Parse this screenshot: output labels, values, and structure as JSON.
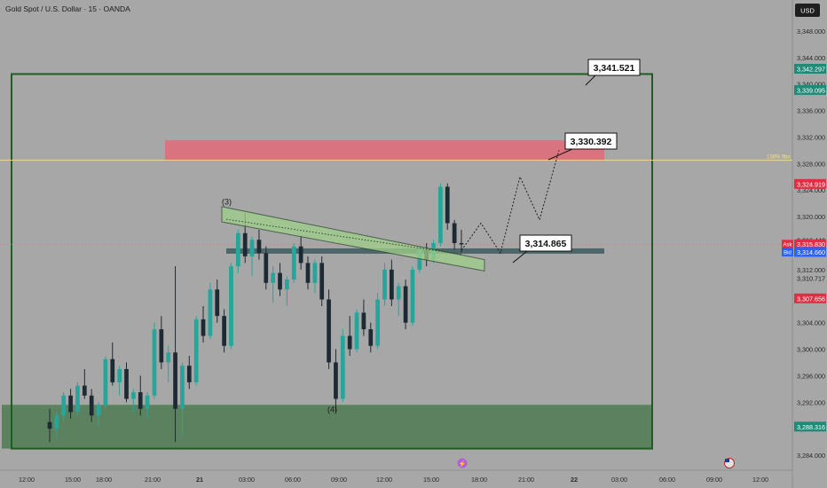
{
  "header": {
    "symbol_line": "Gold Spot / U.S. Dollar · 15 · OANDA",
    "currency_button": "USD"
  },
  "colors": {
    "background": "#a7a7a7",
    "up": "#26a69a",
    "down": "#1e2a33",
    "frame": "#1b5e20",
    "supply_zone": "#e26a78",
    "demand_zone": "#4f7a51",
    "channel_fill": "#9fd08a",
    "fib_line": "#f2d98c",
    "mid_band": "#3f5a5e",
    "price_tag_green": "#1f8a78",
    "price_tag_red": "#e02f45"
  },
  "chart_data": {
    "type": "candlestick",
    "instrument": "Gold Spot / U.S. Dollar",
    "timeframe": "15",
    "source": "OANDA",
    "currency": "USD",
    "ylim": [
      3282,
      3352
    ],
    "y_ticks": [
      "3,348.000",
      "3,344.000",
      "3,340.000",
      "3,336.000",
      "3,332.000",
      "3,328.000",
      "3,324.000",
      "3,320.000",
      "3,316.000",
      "3,312.000",
      "3,308.000",
      "3,304.000",
      "3,300.000",
      "3,296.000",
      "3,292.000",
      "3,288.000",
      "3,284.000"
    ],
    "x_ticks": [
      "12:00",
      "15:00",
      "18:00",
      "21:00",
      "21",
      "03:00",
      "06:00",
      "09:00",
      "12:00",
      "15:00",
      "18:00",
      "21:00",
      "22",
      "03:00",
      "06:00",
      "09:00",
      "12:00"
    ],
    "price_tags": [
      {
        "label": "",
        "value": "3,342.297",
        "kind": "green"
      },
      {
        "label": "",
        "value": "3,339.095",
        "kind": "green"
      },
      {
        "label": "",
        "value": "3,324.919",
        "kind": "red"
      },
      {
        "label": "",
        "value": "3,316.440",
        "kind": "plain"
      },
      {
        "label": "Ask",
        "value": "3,315.830",
        "kind": "red"
      },
      {
        "label": "Bid",
        "value": "3,314.660",
        "kind": "blue"
      },
      {
        "label": "",
        "value": "3,310.717",
        "kind": "plain"
      },
      {
        "label": "",
        "value": "3,307.656",
        "kind": "red"
      },
      {
        "label": "",
        "value": "3,288.316",
        "kind": "green"
      }
    ],
    "zones": {
      "frame": {
        "from": 3285,
        "to": 3341.5
      },
      "supply": {
        "from": 3328.4,
        "to": 3331.5
      },
      "demand": {
        "from": 3285,
        "to": 3291.6
      },
      "mid_band": {
        "from": 3314.4,
        "to": 3315.2
      }
    },
    "fib_line": {
      "value": 3328.5,
      "label": "138% fibo"
    },
    "callouts": [
      "3,341.521",
      "3,330.392",
      "3,314.865"
    ],
    "wave_labels": [
      "(3)",
      "(4)"
    ],
    "candles": [
      [
        3289.0,
        3291.0,
        3286.0,
        3288.0
      ],
      [
        3288.0,
        3290.5,
        3286.5,
        3290.0
      ],
      [
        3290.0,
        3293.5,
        3289.0,
        3293.0
      ],
      [
        3293.0,
        3294.0,
        3289.5,
        3290.5
      ],
      [
        3290.5,
        3295.0,
        3290.0,
        3294.5
      ],
      [
        3294.5,
        3297.0,
        3292.5,
        3293.0
      ],
      [
        3293.0,
        3294.0,
        3289.0,
        3290.0
      ],
      [
        3290.0,
        3292.0,
        3288.5,
        3291.5
      ],
      [
        3291.5,
        3299.0,
        3291.0,
        3298.5
      ],
      [
        3298.5,
        3301.0,
        3294.5,
        3295.0
      ],
      [
        3295.0,
        3297.5,
        3293.0,
        3297.0
      ],
      [
        3297.0,
        3298.0,
        3292.0,
        3292.5
      ],
      [
        3292.5,
        3294.0,
        3290.5,
        3293.5
      ],
      [
        3293.5,
        3296.0,
        3290.0,
        3291.0
      ],
      [
        3291.0,
        3293.5,
        3289.5,
        3293.0
      ],
      [
        3293.0,
        3304.0,
        3292.5,
        3303.0
      ],
      [
        3303.0,
        3305.0,
        3297.0,
        3298.0
      ],
      [
        3298.0,
        3300.5,
        3295.0,
        3299.5
      ],
      [
        3299.5,
        3312.5,
        3286.0,
        3291.0
      ],
      [
        3291.0,
        3298.0,
        3287.0,
        3297.5
      ],
      [
        3297.5,
        3299.0,
        3294.0,
        3295.0
      ],
      [
        3295.0,
        3305.0,
        3294.5,
        3304.5
      ],
      [
        3304.5,
        3306.5,
        3301.0,
        3302.0
      ],
      [
        3302.0,
        3310.0,
        3301.5,
        3309.0
      ],
      [
        3309.0,
        3310.5,
        3304.0,
        3305.0
      ],
      [
        3305.0,
        3306.0,
        3299.5,
        3300.5
      ],
      [
        3300.5,
        3313.0,
        3300.0,
        3312.5
      ],
      [
        3312.5,
        3318.0,
        3311.5,
        3317.5
      ],
      [
        3317.5,
        3320.5,
        3313.0,
        3314.0
      ],
      [
        3314.0,
        3317.0,
        3311.0,
        3316.5
      ],
      [
        3316.5,
        3318.0,
        3313.5,
        3314.5
      ],
      [
        3314.5,
        3315.5,
        3309.0,
        3310.0
      ],
      [
        3310.0,
        3312.5,
        3307.0,
        3311.5
      ],
      [
        3311.5,
        3313.0,
        3308.0,
        3309.0
      ],
      [
        3309.0,
        3311.0,
        3306.5,
        3310.5
      ],
      [
        3310.5,
        3316.0,
        3310.0,
        3315.5
      ],
      [
        3315.5,
        3317.0,
        3312.0,
        3313.0
      ],
      [
        3313.0,
        3314.0,
        3309.0,
        3310.0
      ],
      [
        3310.0,
        3313.5,
        3308.5,
        3313.0
      ],
      [
        3313.0,
        3314.0,
        3306.5,
        3307.5
      ],
      [
        3307.5,
        3309.0,
        3297.0,
        3298.0
      ],
      [
        3298.0,
        3300.0,
        3290.5,
        3292.5
      ],
      [
        3292.5,
        3303.0,
        3292.0,
        3302.0
      ],
      [
        3302.0,
        3305.0,
        3299.0,
        3300.0
      ],
      [
        3300.0,
        3306.0,
        3299.5,
        3305.5
      ],
      [
        3305.5,
        3307.5,
        3302.0,
        3303.0
      ],
      [
        3303.0,
        3304.0,
        3299.5,
        3300.5
      ],
      [
        3300.5,
        3308.5,
        3300.0,
        3307.5
      ],
      [
        3307.5,
        3313.0,
        3306.5,
        3312.0
      ],
      [
        3312.0,
        3313.5,
        3306.5,
        3307.5
      ],
      [
        3307.5,
        3310.0,
        3305.0,
        3309.5
      ],
      [
        3309.5,
        3310.5,
        3303.0,
        3304.0
      ],
      [
        3304.0,
        3312.5,
        3303.5,
        3312.0
      ],
      [
        3312.0,
        3315.5,
        3311.5,
        3315.0
      ],
      [
        3315.0,
        3316.0,
        3312.5,
        3313.5
      ],
      [
        3313.5,
        3316.5,
        3313.0,
        3316.0
      ],
      [
        3316.0,
        3325.0,
        3315.5,
        3324.5
      ],
      [
        3324.5,
        3325.0,
        3318.0,
        3319.0
      ],
      [
        3319.0,
        3319.5,
        3315.0,
        3316.0
      ],
      [
        3316.0,
        3318.0,
        3314.5,
        3315.8
      ]
    ],
    "projection_path": [
      [
        3314.9,
        0
      ],
      [
        3319.0,
        1.1
      ],
      [
        3314.5,
        2.2
      ],
      [
        3326.0,
        3.3
      ],
      [
        3319.5,
        4.4
      ],
      [
        3330.0,
        5.5
      ]
    ]
  }
}
